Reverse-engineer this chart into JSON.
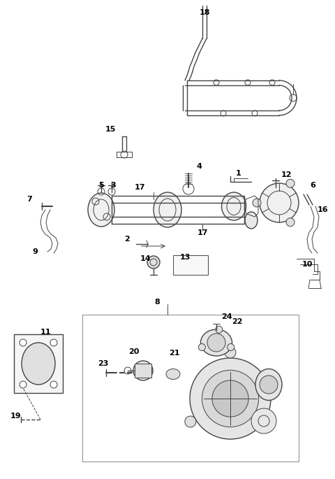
{
  "bg_color": "#ffffff",
  "line_color": "#444444",
  "label_color": "#000000",
  "fig_width": 4.8,
  "fig_height": 6.85,
  "dpi": 100,
  "label_font_size": 8,
  "label_bold": true
}
